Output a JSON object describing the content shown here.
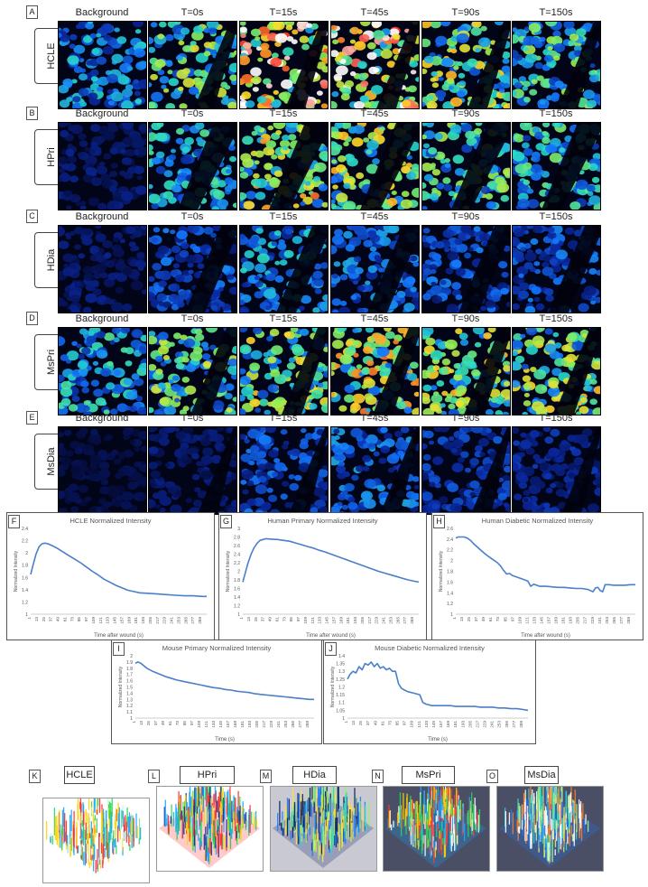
{
  "image_rows": [
    {
      "letter": "A",
      "cell": "HCLE",
      "columns": [
        "Background",
        "T=0s",
        "T=15s",
        "T=45s",
        "T=90s",
        "T=150s"
      ],
      "intensity": [
        0.35,
        0.55,
        0.95,
        0.9,
        0.6,
        0.5
      ]
    },
    {
      "letter": "B",
      "cell": "HPri",
      "columns": [
        "Background",
        "T=0s",
        "T=15s",
        "T=45s",
        "T=90s",
        "T=150s"
      ],
      "intensity": [
        0.1,
        0.4,
        0.65,
        0.6,
        0.5,
        0.45
      ]
    },
    {
      "letter": "C",
      "cell": "HDia",
      "columns": [
        "Background",
        "T=0s",
        "T=15s",
        "T=45s",
        "T=90s",
        "T=150s"
      ],
      "intensity": [
        0.1,
        0.25,
        0.35,
        0.3,
        0.25,
        0.25
      ]
    },
    {
      "letter": "D",
      "cell": "MsPri",
      "columns": [
        "Background",
        "T=0s",
        "T=15s",
        "T=45s",
        "T=90s",
        "T=150s"
      ],
      "intensity": [
        0.4,
        0.55,
        0.6,
        0.65,
        0.6,
        0.6
      ]
    },
    {
      "letter": "E",
      "cell": "MsDia",
      "columns": [
        "Background",
        "T=0s",
        "T=15s",
        "T=45s",
        "T=90s",
        "T=150s"
      ],
      "intensity": [
        0.05,
        0.1,
        0.25,
        0.3,
        0.2,
        0.15
      ]
    }
  ],
  "chart_data": [
    {
      "letter": "F",
      "type": "line",
      "title": "HCLE Normalized Intensity",
      "xlabel": "Time after wound (s)",
      "ylabel": "Normalized Intensity",
      "ylim": [
        1,
        2.4
      ],
      "yticks": [
        "1",
        "1.2",
        "1.4",
        "1.6",
        "1.8",
        "2",
        "2.2",
        "2.4"
      ],
      "xticks": [
        "1",
        "13",
        "25",
        "37",
        "49",
        "61",
        "73",
        "85",
        "97",
        "109",
        "121",
        "133",
        "145",
        "157",
        "169",
        "181",
        "193",
        "205",
        "217",
        "229",
        "241",
        "253",
        "265",
        "277",
        "289"
      ],
      "x": [
        1,
        5,
        10,
        15,
        20,
        25,
        30,
        37,
        45,
        55,
        65,
        75,
        85,
        95,
        105,
        115,
        125,
        135,
        145,
        155,
        165,
        175,
        185,
        200,
        215,
        230,
        245,
        260,
        275,
        290,
        298
      ],
      "y": [
        1.65,
        1.8,
        1.98,
        2.1,
        2.15,
        2.16,
        2.15,
        2.12,
        2.08,
        2.02,
        1.96,
        1.9,
        1.84,
        1.77,
        1.7,
        1.64,
        1.57,
        1.52,
        1.47,
        1.43,
        1.39,
        1.37,
        1.35,
        1.34,
        1.33,
        1.32,
        1.31,
        1.3,
        1.3,
        1.29,
        1.29
      ]
    },
    {
      "letter": "G",
      "type": "line",
      "title": "Human Primary Normalized Intensity",
      "xlabel": "Time after wound (s)",
      "ylabel": "Normalized Intensity",
      "ylim": [
        1,
        3
      ],
      "yticks": [
        "1",
        "1.2",
        "1.4",
        "1.6",
        "1.8",
        "2",
        "2.2",
        "2.4",
        "2.6",
        "2.8",
        "3"
      ],
      "xticks": [
        "1",
        "13",
        "25",
        "37",
        "49",
        "61",
        "73",
        "85",
        "97",
        "109",
        "121",
        "133",
        "145",
        "157",
        "169",
        "181",
        "193",
        "205",
        "217",
        "229",
        "241",
        "253",
        "265",
        "277",
        "289"
      ],
      "x": [
        1,
        5,
        10,
        15,
        20,
        25,
        30,
        40,
        50,
        60,
        70,
        80,
        90,
        100,
        110,
        120,
        130,
        140,
        150,
        160,
        170,
        180,
        190,
        200,
        210,
        220,
        230,
        240,
        250,
        260,
        270,
        280,
        290,
        298
      ],
      "y": [
        1.75,
        1.95,
        2.2,
        2.4,
        2.55,
        2.65,
        2.72,
        2.76,
        2.75,
        2.74,
        2.72,
        2.7,
        2.66,
        2.62,
        2.58,
        2.54,
        2.49,
        2.45,
        2.4,
        2.35,
        2.3,
        2.25,
        2.2,
        2.15,
        2.1,
        2.05,
        2.0,
        1.96,
        1.92,
        1.88,
        1.84,
        1.8,
        1.77,
        1.75
      ]
    },
    {
      "letter": "H",
      "type": "line",
      "title": "Human Diabetic Normalized Intensity",
      "xlabel": "Time after wound (s)",
      "ylabel": "Normalized Intensity",
      "ylim": [
        1,
        2.6
      ],
      "yticks": [
        "1",
        "1.2",
        "1.4",
        "1.6",
        "1.8",
        "2",
        "2.2",
        "2.4",
        "2.6"
      ],
      "xticks": [
        "1",
        "13",
        "25",
        "37",
        "49",
        "61",
        "73",
        "85",
        "97",
        "109",
        "121",
        "133",
        "145",
        "157",
        "169",
        "181",
        "193",
        "205",
        "217",
        "229",
        "241",
        "253",
        "265",
        "277",
        "289"
      ],
      "x": [
        1,
        5,
        10,
        15,
        20,
        25,
        30,
        40,
        50,
        60,
        70,
        75,
        80,
        85,
        90,
        95,
        100,
        105,
        110,
        120,
        125,
        130,
        140,
        150,
        160,
        170,
        180,
        190,
        200,
        210,
        220,
        228,
        232,
        236,
        240,
        244,
        248,
        255,
        262,
        270,
        280,
        290,
        298
      ],
      "y": [
        2.42,
        2.44,
        2.44,
        2.44,
        2.42,
        2.38,
        2.32,
        2.22,
        2.12,
        2.04,
        1.96,
        1.9,
        1.82,
        1.75,
        1.76,
        1.72,
        1.7,
        1.68,
        1.66,
        1.62,
        1.52,
        1.56,
        1.52,
        1.52,
        1.51,
        1.5,
        1.5,
        1.49,
        1.48,
        1.48,
        1.46,
        1.42,
        1.49,
        1.5,
        1.44,
        1.42,
        1.55,
        1.55,
        1.54,
        1.54,
        1.54,
        1.55,
        1.55
      ]
    },
    {
      "letter": "I",
      "type": "line",
      "title": "Mouse Primary Normalized Intensity",
      "xlabel": "Time (s)",
      "ylabel": "Normalized Intensity",
      "ylim": [
        1,
        2
      ],
      "yticks": [
        "1",
        "1.1",
        "1.2",
        "1.3",
        "1.4",
        "1.5",
        "1.6",
        "1.7",
        "1.8",
        "1.9",
        "2"
      ],
      "xticks": [
        "1",
        "13",
        "25",
        "37",
        "49",
        "61",
        "73",
        "85",
        "97",
        "109",
        "121",
        "133",
        "145",
        "157",
        "169",
        "181",
        "193",
        "205",
        "217",
        "229",
        "241",
        "253",
        "265",
        "277",
        "289"
      ],
      "x": [
        1,
        5,
        10,
        15,
        20,
        30,
        40,
        50,
        60,
        70,
        80,
        90,
        100,
        110,
        120,
        130,
        140,
        150,
        160,
        170,
        180,
        190,
        200,
        210,
        220,
        230,
        240,
        250,
        260,
        270,
        280,
        290,
        298
      ],
      "y": [
        1.88,
        1.9,
        1.88,
        1.84,
        1.8,
        1.75,
        1.71,
        1.67,
        1.64,
        1.61,
        1.59,
        1.57,
        1.55,
        1.53,
        1.51,
        1.49,
        1.48,
        1.46,
        1.45,
        1.43,
        1.42,
        1.41,
        1.39,
        1.38,
        1.37,
        1.36,
        1.35,
        1.34,
        1.33,
        1.32,
        1.31,
        1.3,
        1.3
      ]
    },
    {
      "letter": "J",
      "type": "line",
      "title": "Mouse Diabetic Normalized Intensity",
      "xlabel": "Time (s)",
      "ylabel": "Normalized Intensity",
      "ylim": [
        1,
        1.4
      ],
      "yticks": [
        "1",
        "1.05",
        "1.1",
        "1.15",
        "1.2",
        "1.25",
        "1.3",
        "1.35",
        "1.4"
      ],
      "xticks": [
        "1",
        "13",
        "25",
        "37",
        "49",
        "61",
        "73",
        "85",
        "97",
        "109",
        "121",
        "133",
        "145",
        "157",
        "169",
        "181",
        "193",
        "205",
        "217",
        "229",
        "241",
        "253",
        "265",
        "277",
        "289"
      ],
      "x": [
        1,
        5,
        10,
        15,
        20,
        25,
        30,
        35,
        40,
        45,
        50,
        55,
        60,
        65,
        70,
        75,
        80,
        85,
        90,
        95,
        100,
        110,
        120,
        125,
        130,
        140,
        150,
        160,
        170,
        180,
        190,
        200,
        210,
        220,
        230,
        240,
        250,
        260,
        270,
        280,
        290,
        298
      ],
      "y": [
        1.25,
        1.28,
        1.3,
        1.29,
        1.33,
        1.31,
        1.35,
        1.34,
        1.36,
        1.33,
        1.35,
        1.32,
        1.33,
        1.31,
        1.32,
        1.3,
        1.3,
        1.22,
        1.19,
        1.18,
        1.17,
        1.16,
        1.15,
        1.1,
        1.09,
        1.08,
        1.08,
        1.08,
        1.08,
        1.075,
        1.075,
        1.075,
        1.075,
        1.07,
        1.07,
        1.07,
        1.065,
        1.065,
        1.06,
        1.06,
        1.055,
        1.05
      ]
    }
  ],
  "surfaces": [
    {
      "letter": "K",
      "cell": "HCLE",
      "bg": "#ffffff",
      "palette": [
        "#ffffff",
        "#ff2a2a",
        "#ffd400",
        "#19a8ff",
        "#29d65a"
      ]
    },
    {
      "letter": "L",
      "cell": "HPri",
      "bg": "#ffffff",
      "palette": [
        "#ff2a2a",
        "#ffd400",
        "#29d65a",
        "#19a8ff",
        "#1030a0"
      ]
    },
    {
      "letter": "M",
      "cell": "HDia",
      "bg": "#c9c9d2",
      "palette": [
        "#0b1a6e",
        "#1d7bff",
        "#35d6c6",
        "#9bf06a",
        "#ffe13a"
      ]
    },
    {
      "letter": "N",
      "cell": "MsPri",
      "bg": "#4a4f66",
      "palette": [
        "#19a8ff",
        "#29d65a",
        "#ffd400",
        "#ff3b3b",
        "#ffffff"
      ]
    },
    {
      "letter": "O",
      "cell": "MsDia",
      "bg": "#4a4f66",
      "palette": [
        "#1d7bff",
        "#35d6c6",
        "#bff07a",
        "#ffffff",
        "#ff7d2a"
      ]
    }
  ]
}
